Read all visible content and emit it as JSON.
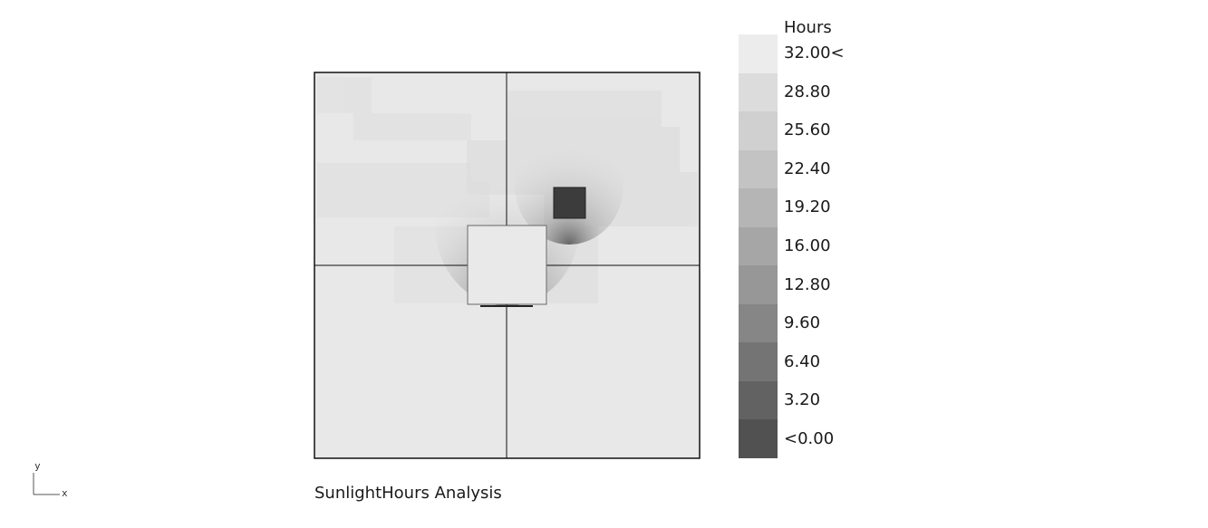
{
  "legend": {
    "title": "Hours",
    "labels": [
      "32.00<",
      "28.80",
      "25.60",
      "22.40",
      "19.20",
      "16.00",
      "12.80",
      "9.60",
      "6.40",
      "3.20",
      "<0.00"
    ],
    "colors": [
      "#ececec",
      "#dcdcdc",
      "#d0d0d0",
      "#c3c3c3",
      "#b5b5b5",
      "#a6a6a6",
      "#979797",
      "#868686",
      "#747474",
      "#626262",
      "#515151"
    ]
  },
  "caption": "SunlightHours Analysis",
  "axes": {
    "x": "x",
    "y": "y"
  }
}
